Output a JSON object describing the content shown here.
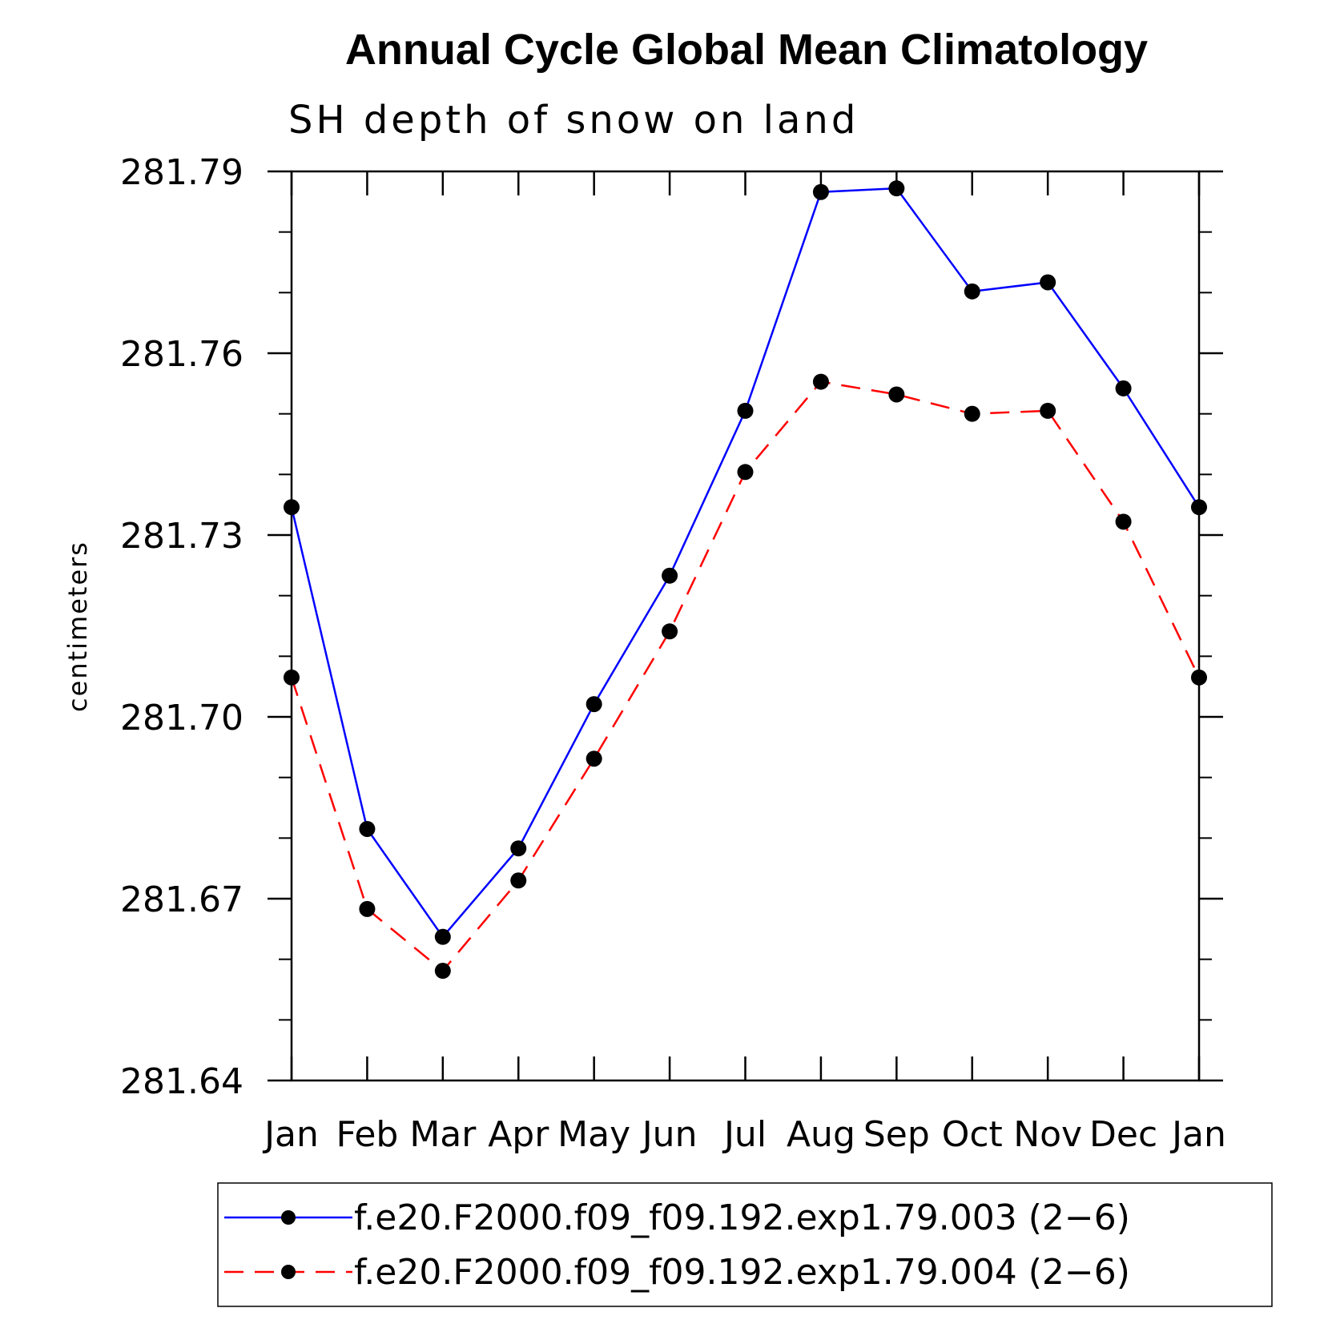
{
  "chart_data": {
    "type": "line",
    "title": "Annual Cycle Global Mean Climatology",
    "subtitle": "SH depth of snow on land",
    "xlabel": "",
    "ylabel": "centimeters",
    "categories": [
      "Jan",
      "Feb",
      "Mar",
      "Apr",
      "May",
      "Jun",
      "Jul",
      "Aug",
      "Sep",
      "Oct",
      "Nov",
      "Dec",
      "Jan"
    ],
    "ylim": [
      281.64,
      281.79
    ],
    "yticks": [
      "281.64",
      "281.67",
      "281.70",
      "281.73",
      "281.76",
      "281.79"
    ],
    "series": [
      {
        "name": "f.e20.F2000.f09_f09.192.exp1.79.003 (2−6)",
        "color": "#0000ff",
        "style": "solid",
        "values": [
          281.7346,
          281.6815,
          281.6637,
          281.6783,
          281.7021,
          281.7233,
          281.7505,
          281.7866,
          281.7872,
          281.7702,
          281.7717,
          281.7542,
          281.7346
        ]
      },
      {
        "name": "f.e20.F2000.f09_f09.192.exp1.79.004 (2−6)",
        "color": "#ff0000",
        "style": "dashed",
        "values": [
          281.7065,
          281.6683,
          281.6581,
          281.673,
          281.6931,
          281.7141,
          281.7404,
          281.7553,
          281.7532,
          281.75,
          281.7505,
          281.7322,
          281.7065
        ]
      }
    ],
    "legend_position": "bottom"
  }
}
